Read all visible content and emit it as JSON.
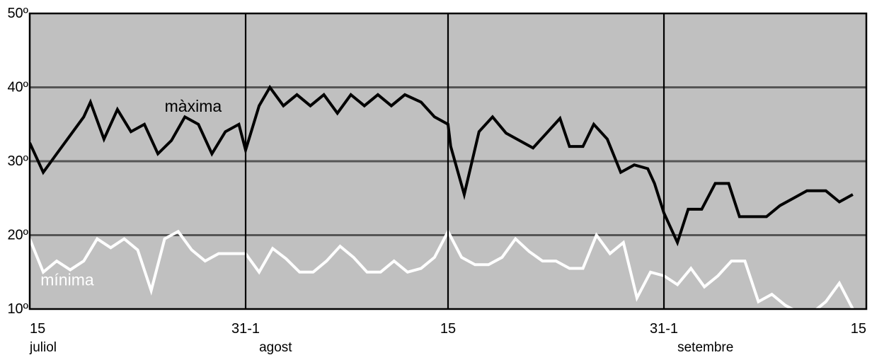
{
  "chart_data": {
    "type": "line",
    "y_ticks": [
      "10º",
      "20º",
      "30º",
      "40º",
      "50º"
    ],
    "x_ticks": [
      {
        "day": 0,
        "label": "15"
      },
      {
        "day": 16,
        "label": "31-1"
      },
      {
        "day": 31,
        "label": "15"
      },
      {
        "day": 47,
        "label": "31-1"
      },
      {
        "day": 62,
        "label": "15"
      }
    ],
    "months": [
      {
        "day": 0,
        "label": "juliol"
      },
      {
        "day": 17,
        "label": "agost"
      },
      {
        "day": 48,
        "label": "setembre"
      }
    ],
    "ylim": [
      10,
      50
    ],
    "grid_y": [
      20,
      30,
      40
    ],
    "vertical_lines": [
      16,
      31,
      47
    ],
    "x_range": [
      0,
      62
    ],
    "colors": {
      "background": "#c0c0c0",
      "grid": "#555555",
      "maxima": "#000000",
      "minima": "#ffffff",
      "frame": "#000000"
    },
    "series": [
      {
        "name": "màxima",
        "color": "#000000",
        "label_day": 10,
        "label_temp": 36.7,
        "points": [
          [
            0,
            32.5
          ],
          [
            1,
            28.5
          ],
          [
            2,
            31
          ],
          [
            3,
            33.5
          ],
          [
            4,
            36
          ],
          [
            4.5,
            38
          ],
          [
            5.5,
            33
          ],
          [
            6.5,
            37
          ],
          [
            7.5,
            34
          ],
          [
            8.5,
            35
          ],
          [
            9.5,
            31
          ],
          [
            10.5,
            32.8
          ],
          [
            11.5,
            36
          ],
          [
            12.5,
            35
          ],
          [
            13.5,
            31
          ],
          [
            14.5,
            34
          ],
          [
            15.5,
            35
          ],
          [
            16,
            31.5
          ],
          [
            17,
            37.5
          ],
          [
            17.8,
            40
          ],
          [
            18.8,
            37.5
          ],
          [
            19.8,
            39
          ],
          [
            20.8,
            37.5
          ],
          [
            21.8,
            39
          ],
          [
            22.8,
            36.5
          ],
          [
            23.8,
            39
          ],
          [
            24.8,
            37.5
          ],
          [
            25.8,
            39
          ],
          [
            26.8,
            37.5
          ],
          [
            27.8,
            39
          ],
          [
            29,
            38
          ],
          [
            30,
            36
          ],
          [
            31,
            35
          ],
          [
            31.2,
            32
          ],
          [
            32.2,
            25.5
          ],
          [
            33.3,
            34
          ],
          [
            34.3,
            36
          ],
          [
            35.3,
            33.8
          ],
          [
            36.3,
            32.8
          ],
          [
            37.3,
            31.8
          ],
          [
            38.3,
            33.8
          ],
          [
            39.3,
            35.8
          ],
          [
            40,
            32
          ],
          [
            41,
            32
          ],
          [
            41.8,
            35
          ],
          [
            42.8,
            33
          ],
          [
            43.8,
            28.5
          ],
          [
            44.8,
            29.5
          ],
          [
            45.8,
            29
          ],
          [
            46.3,
            27
          ],
          [
            47,
            23
          ],
          [
            48,
            19
          ],
          [
            48.8,
            23.5
          ],
          [
            49.8,
            23.5
          ],
          [
            50.8,
            27
          ],
          [
            51.8,
            27
          ],
          [
            52.6,
            22.5
          ],
          [
            53.6,
            22.5
          ],
          [
            54.6,
            22.5
          ],
          [
            55.6,
            24
          ],
          [
            56.6,
            25
          ],
          [
            57.6,
            26
          ],
          [
            59,
            26
          ],
          [
            60,
            24.5
          ],
          [
            61,
            25.5
          ]
        ]
      },
      {
        "name": "mínima",
        "color": "#ffffff",
        "label_day": 0.8,
        "label_temp": 13.2,
        "points": [
          [
            0,
            19.5
          ],
          [
            1,
            15
          ],
          [
            2,
            16.5
          ],
          [
            3,
            15.3
          ],
          [
            4,
            16.5
          ],
          [
            5,
            19.5
          ],
          [
            6,
            18.3
          ],
          [
            7,
            19.5
          ],
          [
            8,
            18
          ],
          [
            9,
            12.5
          ],
          [
            10,
            19.5
          ],
          [
            11,
            20.5
          ],
          [
            12,
            18
          ],
          [
            13,
            16.5
          ],
          [
            14,
            17.5
          ],
          [
            15.5,
            17.5
          ],
          [
            16,
            17.5
          ],
          [
            17,
            15
          ],
          [
            18,
            18.2
          ],
          [
            19,
            16.8
          ],
          [
            20,
            15
          ],
          [
            21,
            15
          ],
          [
            22,
            16.5
          ],
          [
            23,
            18.5
          ],
          [
            24,
            17
          ],
          [
            25,
            15
          ],
          [
            26,
            15
          ],
          [
            27,
            16.5
          ],
          [
            28,
            15
          ],
          [
            29,
            15.5
          ],
          [
            30,
            17
          ],
          [
            31,
            20.5
          ],
          [
            32,
            17
          ],
          [
            33,
            16
          ],
          [
            34,
            16
          ],
          [
            35,
            17
          ],
          [
            36,
            19.5
          ],
          [
            37,
            17.8
          ],
          [
            38,
            16.5
          ],
          [
            39,
            16.5
          ],
          [
            40,
            15.5
          ],
          [
            41,
            15.5
          ],
          [
            42,
            20
          ],
          [
            43,
            17.5
          ],
          [
            44,
            19
          ],
          [
            45,
            11.5
          ],
          [
            46,
            15
          ],
          [
            47,
            14.5
          ],
          [
            48,
            13.3
          ],
          [
            49,
            15.5
          ],
          [
            50,
            13
          ],
          [
            51,
            14.5
          ],
          [
            52,
            16.5
          ],
          [
            53,
            16.5
          ],
          [
            54,
            11
          ],
          [
            55,
            12
          ],
          [
            56,
            10.5
          ],
          [
            57,
            9.5
          ],
          [
            58,
            9.5
          ],
          [
            59,
            11
          ],
          [
            60,
            13.5
          ],
          [
            61,
            10
          ]
        ]
      }
    ]
  }
}
